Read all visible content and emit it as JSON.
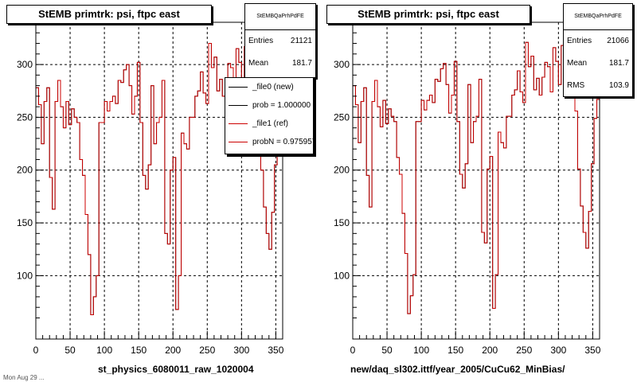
{
  "chart_data": [
    {
      "type": "histogram",
      "title": "StEMB primtrk: psi, ftpc east",
      "xlabel": "st_physics_6080011_raw_1020004",
      "xlim": [
        0,
        360
      ],
      "ylim": [
        40,
        340
      ],
      "xticks": [
        0,
        50,
        100,
        150,
        200,
        250,
        300,
        350
      ],
      "yticks": [
        100,
        150,
        200,
        250,
        300
      ],
      "grid": true,
      "bin_width": 4,
      "values": [
        278,
        262,
        225,
        265,
        278,
        193,
        163,
        265,
        285,
        260,
        240,
        265,
        243,
        258,
        250,
        245,
        210,
        195,
        158,
        120,
        63,
        80,
        100,
        245,
        245,
        265,
        256,
        265,
        270,
        263,
        285,
        283,
        295,
        300,
        280,
        253,
        270,
        302,
        245,
        195,
        182,
        205,
        280,
        225,
        245,
        250,
        285,
        140,
        130,
        200,
        212,
        68,
        100,
        235,
        225,
        220,
        250,
        250,
        270,
        275,
        293,
        273,
        263,
        320,
        297,
        307,
        275,
        286,
        270,
        287,
        301,
        297,
        273,
        315,
        302,
        280,
        317,
        305,
        302,
        318,
        290,
        255,
        200,
        165,
        140,
        125,
        160,
        205,
        248,
        266
      ],
      "stats": {
        "header": "StEMBQaPrhPdFE",
        "entries_label": "Entries",
        "entries": "21121",
        "mean_label": "Mean",
        "mean": "181.7"
      },
      "legend": [
        {
          "label": "_file0 (new)",
          "color": "#000000"
        },
        {
          "label": "prob = 1.000000",
          "color": "#000000"
        },
        {
          "label": "_file1 (ref)",
          "color": "#cc0000"
        },
        {
          "label": "probN = 0.975957",
          "color": "#cc0000"
        }
      ]
    },
    {
      "type": "histogram",
      "title": "StEMB primtrk: psi, ftpc east",
      "xlabel": "new/daq_sl302.ittf/year_2005/CuCu62_MinBias/",
      "xlim": [
        0,
        360
      ],
      "ylim": [
        40,
        340
      ],
      "xticks": [
        0,
        50,
        100,
        150,
        200,
        250,
        300,
        350
      ],
      "yticks": [
        100,
        150,
        200,
        250,
        300
      ],
      "grid": true,
      "bin_width": 4,
      "values": [
        280,
        262,
        226,
        265,
        278,
        195,
        165,
        265,
        285,
        260,
        241,
        266,
        244,
        258,
        251,
        246,
        212,
        196,
        159,
        121,
        64,
        81,
        101,
        246,
        246,
        266,
        257,
        266,
        271,
        264,
        286,
        284,
        296,
        301,
        281,
        254,
        271,
        303,
        246,
        196,
        183,
        206,
        281,
        226,
        246,
        251,
        286,
        141,
        131,
        201,
        213,
        69,
        101,
        236,
        226,
        221,
        251,
        251,
        271,
        276,
        294,
        274,
        264,
        321,
        298,
        308,
        276,
        287,
        271,
        288,
        302,
        298,
        274,
        316,
        303,
        281,
        318,
        306,
        303,
        319,
        291,
        256,
        201,
        166,
        141,
        126,
        161,
        206,
        249,
        267
      ],
      "stats": {
        "header": "StEMBQaPrhPdFE",
        "entries_label": "Entries",
        "entries": "21066",
        "mean_label": "Mean",
        "mean": "181.7",
        "rms_label": "RMS",
        "rms": "103.9"
      }
    }
  ],
  "footnote": "Mon Aug 29 ..."
}
